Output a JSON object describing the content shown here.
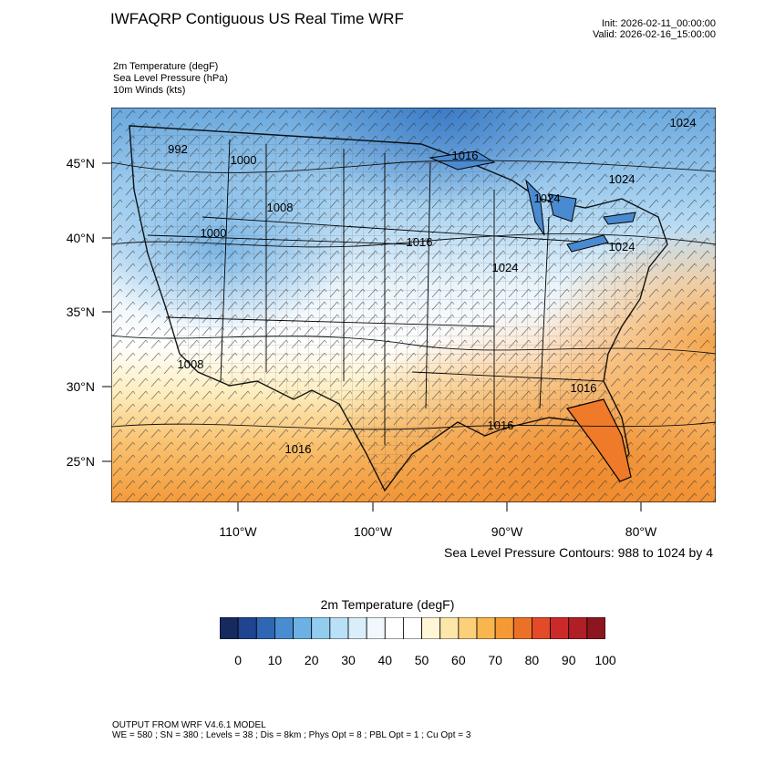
{
  "title": "IWFAQRP Contiguous US Real Time WRF",
  "init_time": "Init: 2026-02-11_00:00:00",
  "valid_time": "Valid: 2026-02-16_15:00:00",
  "fields": [
    "2m Temperature   (degF)",
    "Sea Level Pressure   (hPa)",
    "10m Winds   (kts)"
  ],
  "latitude_labels": [
    "45°N",
    "40°N",
    "35°N",
    "30°N",
    "25°N"
  ],
  "longitude_labels": [
    "110°W",
    "100°W",
    "90°W",
    "80°W"
  ],
  "contour_note": "Sea Level Pressure Contours: 988 to 1024 by 4",
  "contour_labels": [
    "992",
    "1000",
    "1008",
    "1000",
    "1016",
    "1016",
    "1024",
    "1024",
    "1024",
    "1024",
    "1024",
    "1008",
    "1016",
    "1016",
    "1016"
  ],
  "colorbar": {
    "title": "2m Temperature  (degF)",
    "tick_labels": [
      "0",
      "10",
      "20",
      "30",
      "40",
      "50",
      "60",
      "70",
      "80",
      "90",
      "100"
    ],
    "colors": [
      "#162a5e",
      "#1f4590",
      "#2f67b4",
      "#4a8cd0",
      "#6cb0e4",
      "#92cdf0",
      "#b9e0f6",
      "#d9eefa",
      "#f1f8fd",
      "#ffffff",
      "#ffffff",
      "#fff6d6",
      "#fde7a8",
      "#fcd07a",
      "#f9b54e",
      "#f49a34",
      "#ec7128",
      "#e24a28",
      "#cc2a28",
      "#b01f26",
      "#8c1620"
    ]
  },
  "footer_line1": "OUTPUT FROM WRF V4.6.1 MODEL",
  "footer_line2": "WE = 580 ; SN = 380 ; Levels = 38 ; Dis = 8km ; Phys Opt = 8 ; PBL Opt = 1 ; Cu Opt = 3"
}
